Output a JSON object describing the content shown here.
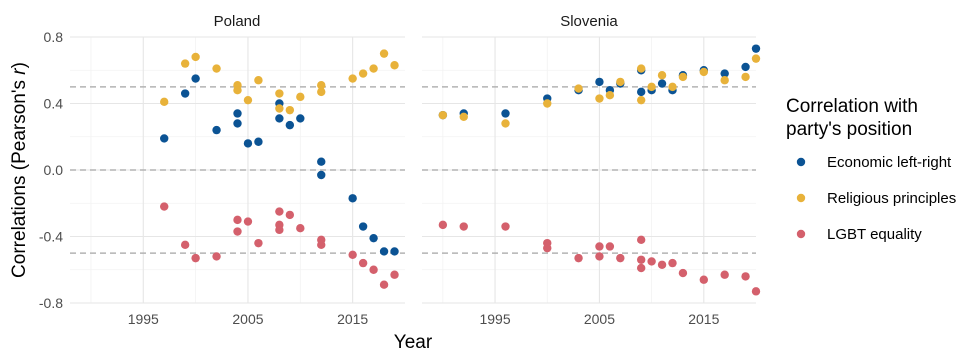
{
  "chart_data": {
    "type": "scatter",
    "xlabel": "Year",
    "ylabel_prefix": "Correlations (Pearson's ",
    "ylabel_italic": "r",
    "ylabel_suffix": ")",
    "xlim": [
      1988,
      2020
    ],
    "ylim": [
      -0.8,
      0.8
    ],
    "x_ticks": [
      1995,
      2005,
      2015
    ],
    "x_tick_labels": [
      "1995",
      "2005",
      "2015"
    ],
    "y_ticks": [
      -0.8,
      -0.4,
      0.0,
      0.4,
      0.8
    ],
    "y_tick_labels": [
      "-0.8",
      "-0.4",
      "0.0",
      "0.4",
      "0.8"
    ],
    "reference_lines": [
      -0.5,
      0.0,
      0.5
    ],
    "grid": true,
    "legend": {
      "title_line1": "Correlation with",
      "title_line2": "party's position",
      "placement": "right"
    },
    "series_meta": [
      {
        "name": "Economic left-right",
        "color": "#0b5394"
      },
      {
        "name": "Religious principles",
        "color": "#e8b23a"
      },
      {
        "name": "LGBT equality",
        "color": "#d4606c"
      }
    ],
    "panels": [
      {
        "title": "Poland",
        "series": [
          {
            "name": "Economic left-right",
            "points": [
              [
                1997,
                0.19
              ],
              [
                1999,
                0.46
              ],
              [
                2000,
                0.55
              ],
              [
                2002,
                0.24
              ],
              [
                2004,
                0.34
              ],
              [
                2004,
                0.28
              ],
              [
                2005,
                0.16
              ],
              [
                2006,
                0.17
              ],
              [
                2008,
                0.4
              ],
              [
                2008,
                0.31
              ],
              [
                2009,
                0.27
              ],
              [
                2010,
                0.31
              ],
              [
                2012,
                0.05
              ],
              [
                2012,
                -0.03
              ],
              [
                2015,
                -0.17
              ],
              [
                2016,
                -0.34
              ],
              [
                2017,
                -0.41
              ],
              [
                2018,
                -0.49
              ],
              [
                2019,
                -0.49
              ]
            ]
          },
          {
            "name": "Religious principles",
            "points": [
              [
                1997,
                0.41
              ],
              [
                1999,
                0.64
              ],
              [
                2000,
                0.68
              ],
              [
                2002,
                0.61
              ],
              [
                2004,
                0.51
              ],
              [
                2004,
                0.48
              ],
              [
                2005,
                0.42
              ],
              [
                2006,
                0.54
              ],
              [
                2008,
                0.46
              ],
              [
                2008,
                0.37
              ],
              [
                2009,
                0.36
              ],
              [
                2010,
                0.44
              ],
              [
                2012,
                0.51
              ],
              [
                2012,
                0.47
              ],
              [
                2015,
                0.55
              ],
              [
                2016,
                0.58
              ],
              [
                2017,
                0.61
              ],
              [
                2018,
                0.7
              ],
              [
                2019,
                0.63
              ]
            ]
          },
          {
            "name": "LGBT equality",
            "points": [
              [
                1997,
                -0.22
              ],
              [
                1999,
                -0.45
              ],
              [
                2000,
                -0.53
              ],
              [
                2002,
                -0.52
              ],
              [
                2004,
                -0.3
              ],
              [
                2004,
                -0.37
              ],
              [
                2005,
                -0.31
              ],
              [
                2006,
                -0.44
              ],
              [
                2008,
                -0.25
              ],
              [
                2008,
                -0.33
              ],
              [
                2008,
                -0.36
              ],
              [
                2009,
                -0.27
              ],
              [
                2010,
                -0.35
              ],
              [
                2012,
                -0.42
              ],
              [
                2012,
                -0.45
              ],
              [
                2015,
                -0.51
              ],
              [
                2016,
                -0.56
              ],
              [
                2017,
                -0.6
              ],
              [
                2018,
                -0.69
              ],
              [
                2019,
                -0.63
              ]
            ]
          }
        ]
      },
      {
        "title": "Slovenia",
        "series": [
          {
            "name": "Economic left-right",
            "points": [
              [
                1990,
                0.33
              ],
              [
                1992,
                0.34
              ],
              [
                1996,
                0.34
              ],
              [
                2000,
                0.43
              ],
              [
                2003,
                0.48
              ],
              [
                2005,
                0.53
              ],
              [
                2006,
                0.48
              ],
              [
                2007,
                0.52
              ],
              [
                2009,
                0.6
              ],
              [
                2009,
                0.47
              ],
              [
                2010,
                0.48
              ],
              [
                2011,
                0.52
              ],
              [
                2012,
                0.48
              ],
              [
                2013,
                0.57
              ],
              [
                2015,
                0.6
              ],
              [
                2017,
                0.58
              ],
              [
                2019,
                0.62
              ],
              [
                2020,
                0.73
              ]
            ]
          },
          {
            "name": "Religious principles",
            "points": [
              [
                1990,
                0.33
              ],
              [
                1992,
                0.32
              ],
              [
                1996,
                0.28
              ],
              [
                2000,
                0.4
              ],
              [
                2003,
                0.49
              ],
              [
                2005,
                0.43
              ],
              [
                2006,
                0.45
              ],
              [
                2007,
                0.53
              ],
              [
                2009,
                0.61
              ],
              [
                2009,
                0.42
              ],
              [
                2010,
                0.5
              ],
              [
                2011,
                0.57
              ],
              [
                2012,
                0.5
              ],
              [
                2013,
                0.56
              ],
              [
                2015,
                0.59
              ],
              [
                2017,
                0.54
              ],
              [
                2019,
                0.56
              ],
              [
                2020,
                0.67
              ]
            ]
          },
          {
            "name": "LGBT equality",
            "points": [
              [
                1990,
                -0.33
              ],
              [
                1992,
                -0.34
              ],
              [
                1996,
                -0.34
              ],
              [
                2000,
                -0.44
              ],
              [
                2000,
                -0.47
              ],
              [
                2003,
                -0.53
              ],
              [
                2005,
                -0.46
              ],
              [
                2005,
                -0.52
              ],
              [
                2006,
                -0.46
              ],
              [
                2007,
                -0.53
              ],
              [
                2009,
                -0.42
              ],
              [
                2009,
                -0.54
              ],
              [
                2009,
                -0.59
              ],
              [
                2010,
                -0.55
              ],
              [
                2011,
                -0.57
              ],
              [
                2012,
                -0.56
              ],
              [
                2013,
                -0.62
              ],
              [
                2015,
                -0.66
              ],
              [
                2017,
                -0.63
              ],
              [
                2019,
                -0.64
              ],
              [
                2020,
                -0.73
              ]
            ]
          }
        ]
      }
    ]
  }
}
